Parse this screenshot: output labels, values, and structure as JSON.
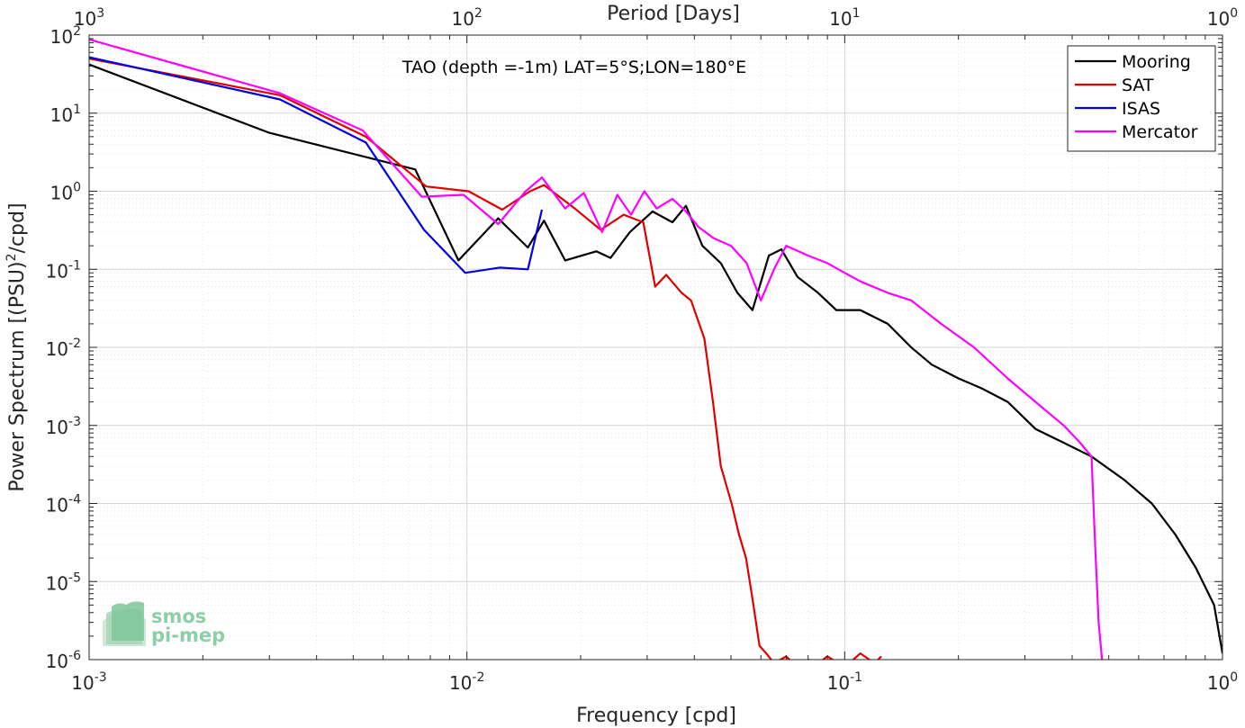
{
  "chart_data": {
    "type": "line",
    "title": "TAO (depth =-1m) LAT=5°S;LON=180°E",
    "xlabel": "Frequency [cpd]",
    "ylabel": "Power Spectrum [(PSU)",
    "ylabel_sup": "2",
    "ylabel_tail": "/cpd]",
    "top_xlabel": "Period [Days]",
    "xscale": "log",
    "yscale": "log",
    "xlim": [
      0.001,
      1
    ],
    "ylim": [
      1e-06,
      100
    ],
    "grid": true,
    "legend_position": "top-right",
    "x_ticks": [
      {
        "base": "10",
        "exp": "-3",
        "value": 0.001
      },
      {
        "base": "10",
        "exp": "-2",
        "value": 0.01
      },
      {
        "base": "10",
        "exp": "-1",
        "value": 0.1
      },
      {
        "base": "10",
        "exp": "0",
        "value": 1
      }
    ],
    "top_ticks": [
      {
        "base": "10",
        "exp": "3",
        "value": 0.001
      },
      {
        "base": "10",
        "exp": "2",
        "value": 0.01
      },
      {
        "base": "10",
        "exp": "1",
        "value": 0.1
      },
      {
        "base": "10",
        "exp": "0",
        "value": 1
      }
    ],
    "y_ticks": [
      {
        "base": "10",
        "exp": "2",
        "value": 100
      },
      {
        "base": "10",
        "exp": "1",
        "value": 10
      },
      {
        "base": "10",
        "exp": "0",
        "value": 1
      },
      {
        "base": "10",
        "exp": "-1",
        "value": 0.1
      },
      {
        "base": "10",
        "exp": "-2",
        "value": 0.01
      },
      {
        "base": "10",
        "exp": "-3",
        "value": 0.001
      },
      {
        "base": "10",
        "exp": "-4",
        "value": 0.0001
      },
      {
        "base": "10",
        "exp": "-5",
        "value": 1e-05
      },
      {
        "base": "10",
        "exp": "-6",
        "value": 1e-06
      }
    ],
    "series": [
      {
        "name": "Mooring",
        "color": "#000000",
        "x": [
          0.001,
          0.003,
          0.0073,
          0.0095,
          0.0121,
          0.0145,
          0.016,
          0.0182,
          0.022,
          0.024,
          0.027,
          0.031,
          0.035,
          0.038,
          0.042,
          0.047,
          0.052,
          0.057,
          0.063,
          0.068,
          0.075,
          0.085,
          0.095,
          0.11,
          0.13,
          0.15,
          0.17,
          0.2,
          0.23,
          0.27,
          0.32,
          0.38,
          0.45,
          0.55,
          0.65,
          0.75,
          0.85,
          0.95,
          1.0
        ],
        "y": [
          42,
          5.6,
          1.9,
          0.13,
          0.45,
          0.19,
          0.42,
          0.13,
          0.17,
          0.14,
          0.3,
          0.55,
          0.4,
          0.65,
          0.2,
          0.12,
          0.05,
          0.03,
          0.15,
          0.18,
          0.08,
          0.05,
          0.03,
          0.03,
          0.02,
          0.01,
          0.006,
          0.004,
          0.003,
          0.002,
          0.0009,
          0.0006,
          0.0004,
          0.0002,
          0.0001,
          4e-05,
          1.5e-05,
          5e-06,
          1.2e-06
        ]
      },
      {
        "name": "SAT",
        "color": "#e00000",
        "x": [
          0.001,
          0.0032,
          0.0054,
          0.0078,
          0.0101,
          0.0124,
          0.0147,
          0.016,
          0.0193,
          0.0226,
          0.026,
          0.0293,
          0.0315,
          0.0337,
          0.037,
          0.0392,
          0.0425,
          0.0448,
          0.047,
          0.0502,
          0.0525,
          0.0548,
          0.057,
          0.0595,
          0.062,
          0.065,
          0.07,
          0.075,
          0.08,
          0.085,
          0.09,
          0.1,
          0.11,
          0.12,
          0.125
        ],
        "y": [
          50,
          17,
          5,
          1.15,
          1.0,
          0.58,
          1.0,
          1.2,
          0.6,
          0.32,
          0.5,
          0.4,
          0.06,
          0.085,
          0.05,
          0.04,
          0.013,
          0.002,
          0.0003,
          0.0001,
          4e-05,
          2e-05,
          6e-06,
          1.5e-06,
          1.2e-06,
          9e-07,
          1.1e-06,
          8e-07,
          1e-06,
          9e-07,
          1.1e-06,
          8e-07,
          1.2e-06,
          9e-07,
          1.1e-06
        ]
      },
      {
        "name": "ISAS",
        "color": "#0000e0",
        "x": [
          0.001,
          0.0032,
          0.0054,
          0.0077,
          0.0099,
          0.0122,
          0.0145,
          0.0158
        ],
        "y": [
          52,
          15,
          4.2,
          0.32,
          0.09,
          0.105,
          0.1,
          0.58
        ]
      },
      {
        "name": "Mercator",
        "color": "#ff00ff",
        "x": [
          0.001,
          0.0032,
          0.0053,
          0.0076,
          0.0098,
          0.0121,
          0.0143,
          0.0158,
          0.0182,
          0.0204,
          0.0228,
          0.025,
          0.0272,
          0.0295,
          0.0318,
          0.035,
          0.038,
          0.041,
          0.045,
          0.05,
          0.055,
          0.06,
          0.065,
          0.07,
          0.08,
          0.09,
          0.1,
          0.11,
          0.13,
          0.15,
          0.18,
          0.22,
          0.27,
          0.32,
          0.38,
          0.42,
          0.45,
          0.46,
          0.47,
          0.48
        ],
        "y": [
          88,
          18,
          6,
          0.85,
          0.9,
          0.38,
          1.0,
          1.5,
          0.6,
          0.95,
          0.3,
          0.9,
          0.5,
          1.0,
          0.6,
          0.8,
          0.55,
          0.35,
          0.25,
          0.2,
          0.12,
          0.04,
          0.1,
          0.2,
          0.15,
          0.12,
          0.09,
          0.07,
          0.05,
          0.04,
          0.02,
          0.01,
          0.004,
          0.002,
          0.001,
          0.0006,
          0.0004,
          3e-05,
          3e-06,
          1e-06
        ]
      }
    ]
  },
  "logo": {
    "line1": "smos",
    "line2": "pi-mep"
  }
}
